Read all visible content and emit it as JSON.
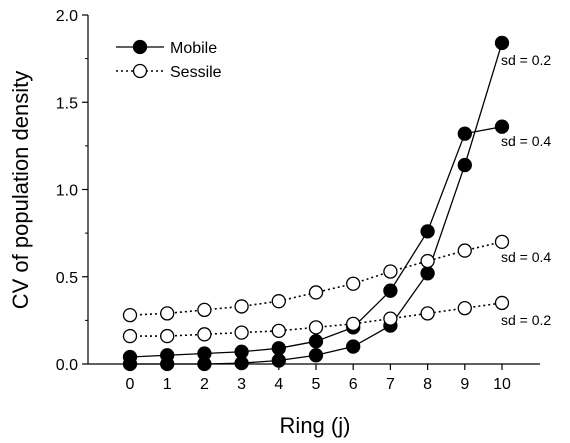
{
  "chart_data": {
    "type": "line",
    "title": "",
    "xlabel": "Ring (j)",
    "ylabel": "CV of population density",
    "categories": [
      0,
      1,
      2,
      3,
      4,
      5,
      6,
      7,
      8,
      9,
      10
    ],
    "ylim": [
      0,
      2.0
    ],
    "yticks": [
      "0.0",
      "0.5",
      "1.0",
      "1.5",
      "2.0"
    ],
    "xticks": [
      "0",
      "1",
      "2",
      "3",
      "4",
      "5",
      "6",
      "7",
      "8",
      "9",
      "10"
    ],
    "grid": false,
    "legend_position": "top-left",
    "legend": [
      {
        "name": "Mobile",
        "marker": "filled-circle",
        "line": "solid"
      },
      {
        "name": "Sessile",
        "marker": "open-circle",
        "line": "dotted"
      }
    ],
    "series": [
      {
        "group": "Mobile",
        "sd_label": "sd = 0.2",
        "marker": "filled-circle",
        "line": "solid",
        "values": [
          0.0,
          0.0,
          0.0,
          0.005,
          0.02,
          0.05,
          0.1,
          0.22,
          0.52,
          1.14,
          1.84
        ]
      },
      {
        "group": "Mobile",
        "sd_label": "sd = 0.4",
        "marker": "filled-circle",
        "line": "solid",
        "values": [
          0.04,
          0.05,
          0.06,
          0.07,
          0.09,
          0.13,
          0.21,
          0.42,
          0.76,
          1.32,
          1.36
        ]
      },
      {
        "group": "Sessile",
        "sd_label": "sd = 0.4",
        "marker": "open-circle",
        "line": "dotted",
        "values": [
          0.28,
          0.29,
          0.31,
          0.33,
          0.36,
          0.41,
          0.46,
          0.53,
          0.59,
          0.65,
          0.7
        ]
      },
      {
        "group": "Sessile",
        "sd_label": "sd = 0.2",
        "marker": "open-circle",
        "line": "dotted",
        "values": [
          0.16,
          0.16,
          0.17,
          0.18,
          0.19,
          0.21,
          0.23,
          0.26,
          0.29,
          0.32,
          0.35
        ]
      }
    ]
  }
}
